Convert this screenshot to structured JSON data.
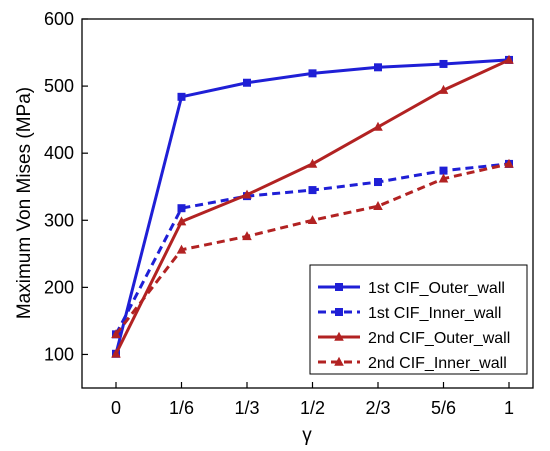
{
  "chart_data": {
    "type": "line",
    "categories": [
      "0",
      "1/6",
      "1/3",
      "1/2",
      "2/3",
      "5/6",
      "1"
    ],
    "xlabel": "γ",
    "ylabel": "Maximum Von Mises (MPa)",
    "ylim": [
      50,
      600
    ],
    "yticks": [
      100,
      200,
      300,
      400,
      500,
      600
    ],
    "grid": false,
    "legend_position": "bottom-right",
    "series": [
      {
        "name": "1st CIF_Outer_wall",
        "values": [
          101,
          484,
          505,
          519,
          528,
          533,
          539
        ],
        "color": "#1f1fd6",
        "dash": "solid",
        "marker": "square"
      },
      {
        "name": "1st CIF_Inner_wall",
        "values": [
          130,
          318,
          336,
          345,
          357,
          374,
          384
        ],
        "color": "#1f1fd6",
        "dash": "dashed",
        "marker": "square"
      },
      {
        "name": "2nd CIF_Outer_wall",
        "values": [
          101,
          298,
          338,
          384,
          439,
          494,
          539
        ],
        "color": "#b22222",
        "dash": "solid",
        "marker": "triangle"
      },
      {
        "name": "2nd CIF_Inner_wall",
        "values": [
          130,
          256,
          276,
          300,
          321,
          362,
          384
        ],
        "color": "#b22222",
        "dash": "dashed",
        "marker": "triangle"
      }
    ]
  }
}
